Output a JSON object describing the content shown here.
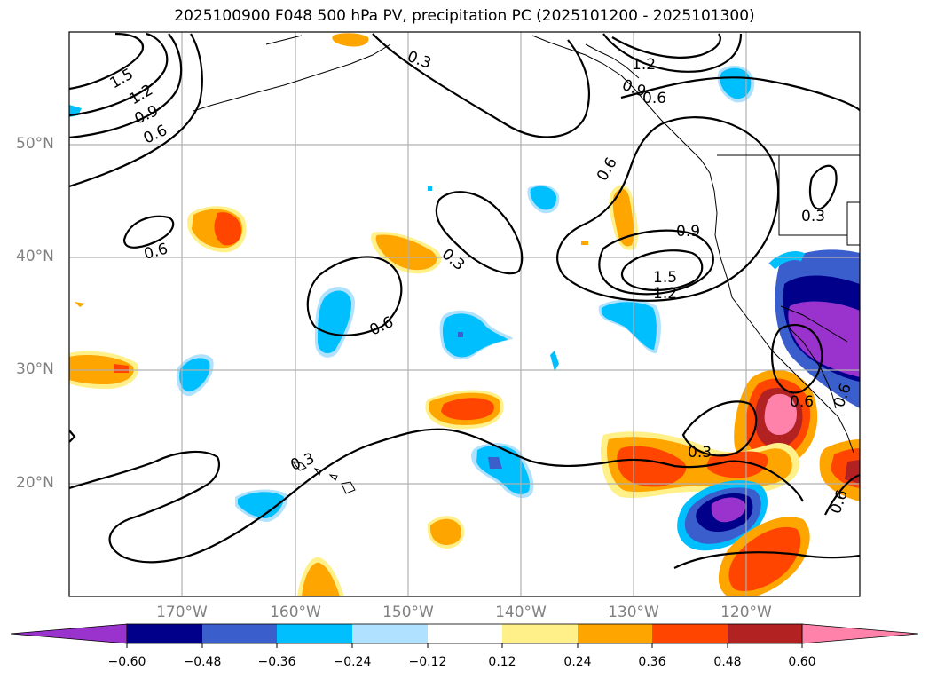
{
  "title": "2025100900 F048 500 hPa PV, precipitation PC (2025101200 - 2025101300)",
  "lat_labels": [
    "50°N",
    "40°N",
    "30°N",
    "20°N"
  ],
  "lon_labels": [
    "170°W",
    "160°W",
    "150°W",
    "140°W",
    "130°W",
    "120°W"
  ],
  "contour_labels": [
    "1.5",
    "1.2",
    "0.9",
    "0.6",
    "0.3",
    "1.2",
    "0.9",
    "0.6",
    "0.6",
    "0.6",
    "0.3",
    "0.6",
    "0.9",
    "1.5",
    "1.2",
    "0.3",
    "0.6",
    "0.3",
    "0.3",
    "0.6",
    "0.6"
  ],
  "colorbar": {
    "ticks": [
      "−0.60",
      "−0.48",
      "−0.36",
      "−0.24",
      "−0.12",
      "0.12",
      "0.24",
      "0.36",
      "0.48",
      "0.60"
    ],
    "colors": [
      "#9a32cd",
      "#00008b",
      "#3a5fcd",
      "#00bfff",
      "#b0e2ff",
      "#ffffff",
      "#fff08a",
      "#ffa500",
      "#ff4500",
      "#b22222",
      "#ff82ab"
    ]
  }
}
